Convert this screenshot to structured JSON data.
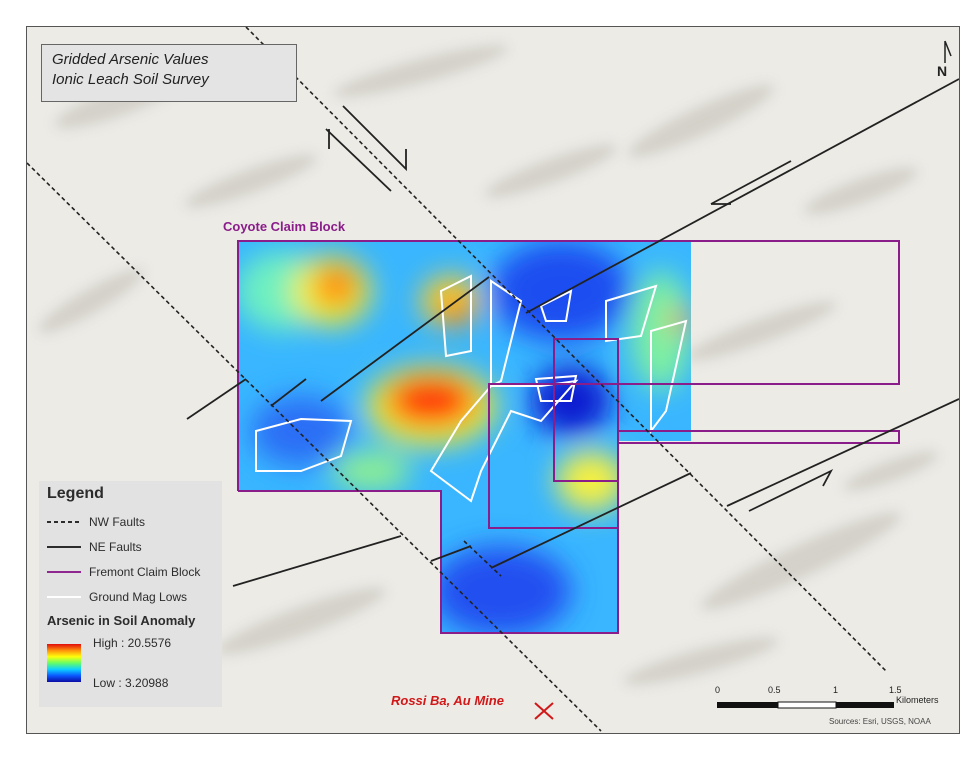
{
  "title": {
    "line1": "Gridded Arsenic Values",
    "line2": "Ionic Leach Soil Survey"
  },
  "labels": {
    "claim_block": "Coyote Claim Block",
    "mine": "Rossi Ba, Au Mine",
    "north": "N"
  },
  "legend": {
    "title": "Legend",
    "items": [
      {
        "label": "NW Faults",
        "style": "dashed",
        "color": "#222222"
      },
      {
        "label": "NE Faults",
        "style": "solid",
        "color": "#222222"
      },
      {
        "label": "Fremont Claim Block",
        "style": "solid",
        "color": "#8a1d8a"
      },
      {
        "label": "Ground Mag Lows",
        "style": "solid",
        "color": "#ffffff"
      }
    ],
    "anomaly_title": "Arsenic in Soil Anomaly",
    "high": "High : 20.5576",
    "low": "Low : 3.20988"
  },
  "scale": {
    "ticks": [
      "0",
      "0.5",
      "1",
      "1.5"
    ],
    "unit": "Kilometers"
  },
  "sources": "Sources: Esri, USGS, NOAA",
  "colors": {
    "claim": "#8a1d8a",
    "mine": "#d01818",
    "fault": "#222222",
    "mag_low": "#ffffff"
  }
}
